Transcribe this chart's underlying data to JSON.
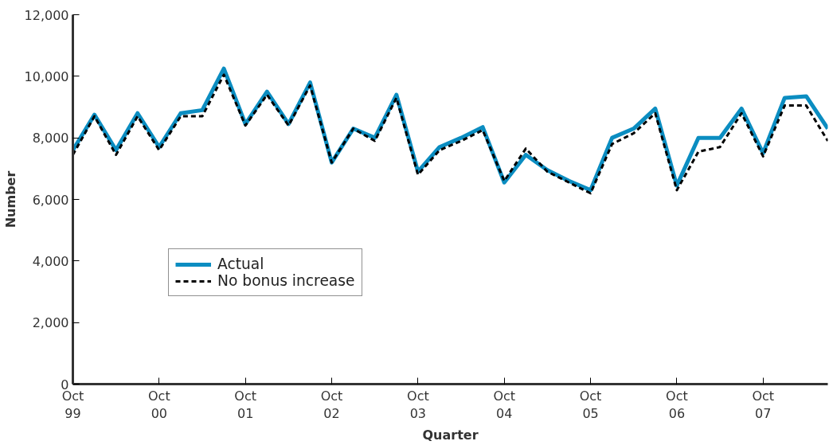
{
  "chart_data": {
    "type": "line",
    "xlabel": "Quarter",
    "ylabel": "Number",
    "categories": [
      "Oct\n99",
      null,
      null,
      null,
      "Oct\n00",
      null,
      null,
      null,
      "Oct\n01",
      null,
      null,
      null,
      "Oct\n02",
      null,
      null,
      null,
      "Oct\n03",
      null,
      null,
      null,
      "Oct\n04",
      null,
      null,
      null,
      "Oct\n05",
      null,
      null,
      null,
      "Oct\n06",
      null,
      null,
      null,
      "Oct\n07",
      null,
      null,
      null
    ],
    "series": [
      {
        "name": "Actual",
        "color": "#0b8dc1",
        "line_style": "solid",
        "values": [
          7600,
          8750,
          7600,
          8800,
          7700,
          8800,
          8900,
          10250,
          8450,
          9500,
          8450,
          9800,
          7200,
          8300,
          8000,
          9400,
          6900,
          7700,
          8000,
          8350,
          6550,
          7450,
          6950,
          6600,
          6300,
          8000,
          8300,
          8950,
          6450,
          8000,
          8000,
          8950,
          7500,
          9300,
          9350,
          8300
        ]
      },
      {
        "name": "No bonus increase",
        "color": "#000000",
        "line_style": "dashed",
        "values": [
          7450,
          8700,
          7450,
          8700,
          7600,
          8700,
          8700,
          10050,
          8400,
          9400,
          8400,
          9700,
          7200,
          8300,
          7900,
          9300,
          6800,
          7600,
          7900,
          8250,
          6600,
          7650,
          6900,
          6550,
          6200,
          7800,
          8150,
          8800,
          6300,
          7550,
          7700,
          8800,
          7400,
          9050,
          9050,
          7900
        ]
      }
    ],
    "ylim": [
      0,
      12000
    ],
    "yticks": [
      0,
      {
        "value": 2000,
        "label": "2,000"
      },
      {
        "value": 4000,
        "label": "4,000"
      },
      {
        "value": 6000,
        "label": "6,000"
      },
      {
        "value": 8000,
        "label": "8,000"
      },
      {
        "value": 10000,
        "label": "10,000"
      },
      {
        "value": 12000,
        "label": "12,000"
      }
    ],
    "grid": false,
    "legend": "bottom left",
    "marker": "none"
  }
}
